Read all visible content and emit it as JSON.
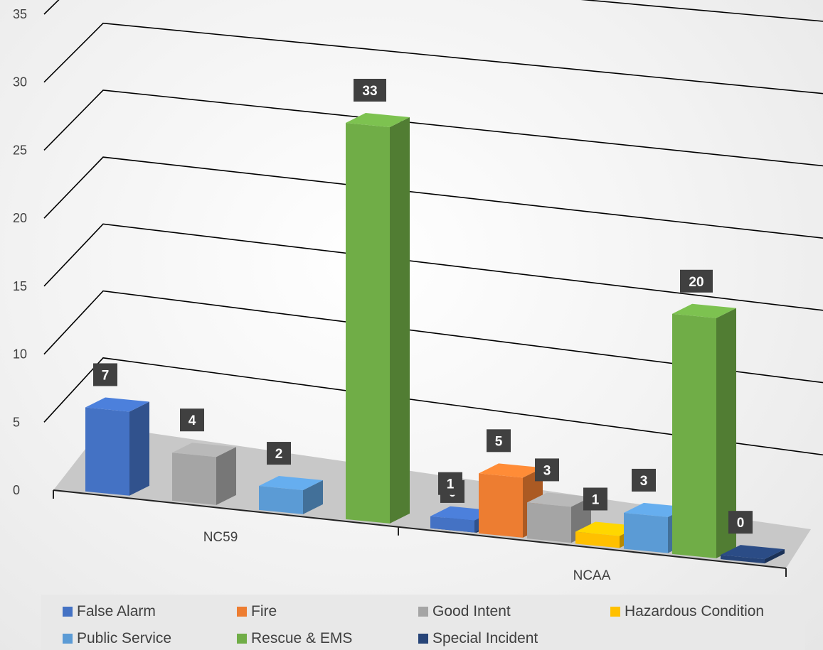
{
  "chart_data": {
    "type": "bar",
    "subtype": "3d-clustered-column",
    "categories": [
      "NC59",
      "NCAA"
    ],
    "yticks": [
      "0",
      "5",
      "10",
      "15",
      "20",
      "25",
      "30",
      "35"
    ],
    "ylim": [
      0,
      35
    ],
    "grid": true,
    "legend_position": "bottom",
    "series": [
      {
        "name": "False Alarm",
        "color": "#4472c4",
        "values": [
          7,
          1
        ]
      },
      {
        "name": "Fire",
        "color": "#ed7d31",
        "values": [
          0,
          5
        ]
      },
      {
        "name": "Good Intent",
        "color": "#a5a5a5",
        "values": [
          4,
          3
        ]
      },
      {
        "name": "Hazardous Condition",
        "color": "#ffc000",
        "values": [
          0,
          1
        ]
      },
      {
        "name": "Public Service",
        "color": "#5b9bd5",
        "values": [
          2,
          3
        ]
      },
      {
        "name": "Rescue & EMS",
        "color": "#70ad47",
        "values": [
          33,
          20
        ]
      },
      {
        "name": "Special Incident",
        "color": "#264478",
        "values": [
          0,
          0
        ]
      }
    ],
    "data_labels": [
      [
        "7",
        null,
        "4",
        null,
        "2",
        "33",
        "0"
      ],
      [
        "1",
        "5",
        "3",
        "1",
        "3",
        "20",
        "0"
      ]
    ]
  }
}
